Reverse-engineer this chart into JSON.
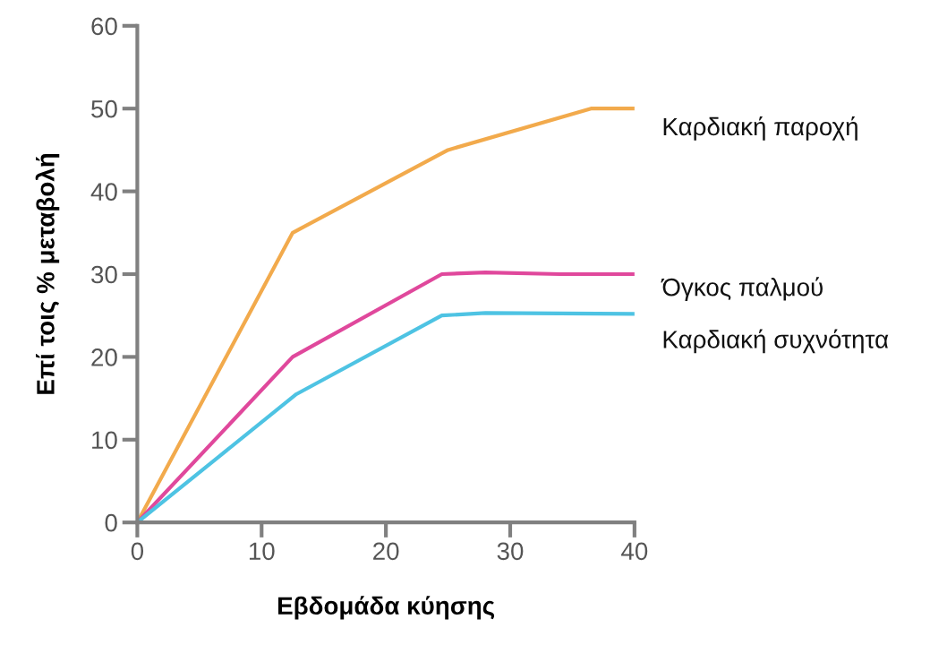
{
  "chart_data": {
    "type": "line",
    "xlabel": "Εβδομάδα κύησης",
    "ylabel": "Επί τοις % μεταβολή",
    "xlim": [
      0,
      40
    ],
    "ylim": [
      0,
      60
    ],
    "xticks": [
      0,
      10,
      20,
      30,
      40
    ],
    "yticks": [
      0,
      10,
      20,
      30,
      40,
      50,
      60
    ],
    "grid": false,
    "legend": false,
    "marker": "none",
    "line_style": "solid",
    "series": [
      {
        "name": "Καρδιακή παροχή",
        "color": "#f2aa4c",
        "x": [
          0,
          12.5,
          25,
          36.5,
          40
        ],
        "values": [
          0,
          35,
          45,
          50,
          50
        ]
      },
      {
        "name": "Όγκος παλμού",
        "color": "#e0489c",
        "x": [
          0,
          12.5,
          24.5,
          28,
          34,
          40
        ],
        "values": [
          0,
          20,
          30,
          30.2,
          30,
          30
        ]
      },
      {
        "name": "Καρδιακή συχνότητα",
        "color": "#4ec3e3",
        "x": [
          0,
          12.8,
          24.5,
          28,
          40
        ],
        "values": [
          0,
          15.5,
          25,
          25.3,
          25.2
        ]
      }
    ]
  }
}
